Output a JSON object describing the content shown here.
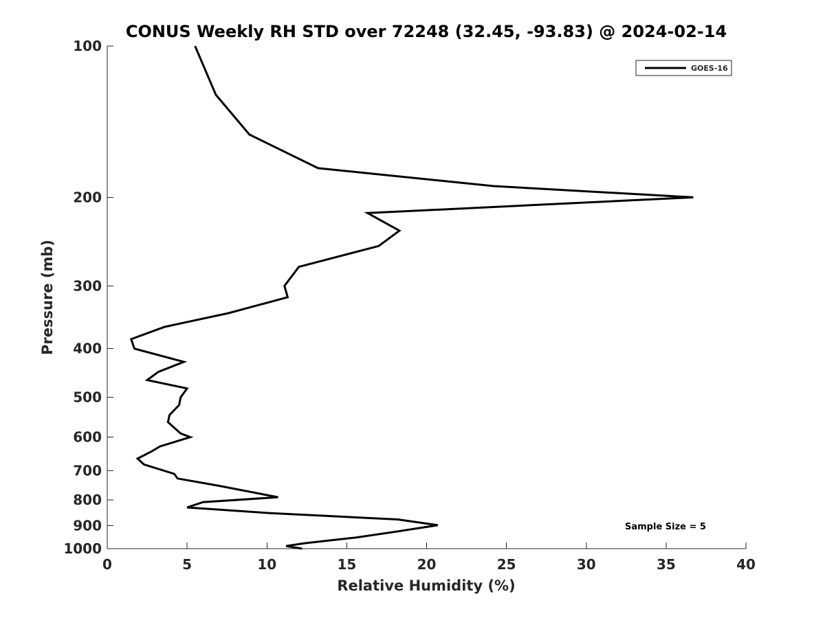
{
  "chart_data": {
    "type": "line",
    "title": "CONUS Weekly RH STD over 72248 (32.45, -93.83) @ 2024-02-14",
    "xlabel": "Relative Humidity (%)",
    "ylabel": "Pressure (mb)",
    "xlim": [
      0,
      40
    ],
    "ylim": [
      1000,
      100
    ],
    "yscale": "log",
    "y_reversed": true,
    "grid": false,
    "legend_position": "top-right",
    "x_ticks": [
      "0",
      "5",
      "10",
      "15",
      "20",
      "25",
      "30",
      "35",
      "40"
    ],
    "y_ticks": [
      "100",
      "200",
      "300",
      "400",
      "500",
      "600",
      "700",
      "800",
      "900",
      "1000"
    ],
    "series": [
      {
        "name": "GOES-16",
        "color": "#000000",
        "points": [
          [
            5.5,
            100
          ],
          [
            6.8,
            125
          ],
          [
            8.9,
            150
          ],
          [
            13.2,
            175
          ],
          [
            24.2,
            190
          ],
          [
            36.7,
            200
          ],
          [
            16.3,
            215
          ],
          [
            18.3,
            233
          ],
          [
            17.0,
            250
          ],
          [
            12.0,
            275
          ],
          [
            11.1,
            300
          ],
          [
            11.3,
            316
          ],
          [
            7.6,
            340
          ],
          [
            3.6,
            362
          ],
          [
            1.5,
            383
          ],
          [
            1.7,
            400
          ],
          [
            4.8,
            425
          ],
          [
            3.2,
            445
          ],
          [
            2.5,
            462
          ],
          [
            5.0,
            480
          ],
          [
            4.6,
            500
          ],
          [
            4.5,
            518
          ],
          [
            3.9,
            542
          ],
          [
            3.8,
            560
          ],
          [
            4.6,
            590
          ],
          [
            5.2,
            600
          ],
          [
            3.3,
            626
          ],
          [
            2.8,
            640
          ],
          [
            1.9,
            662
          ],
          [
            2.3,
            680
          ],
          [
            4.2,
            710
          ],
          [
            4.4,
            725
          ],
          [
            7.0,
            750
          ],
          [
            10.7,
            790
          ],
          [
            6.0,
            808
          ],
          [
            5.0,
            828
          ],
          [
            10.2,
            850
          ],
          [
            18.2,
            875
          ],
          [
            20.7,
            898
          ],
          [
            18.1,
            925
          ],
          [
            15.6,
            950
          ],
          [
            12.4,
            975
          ],
          [
            11.2,
            988
          ],
          [
            12.2,
            1000
          ]
        ]
      }
    ],
    "annotation": "Sample Size = 5"
  }
}
